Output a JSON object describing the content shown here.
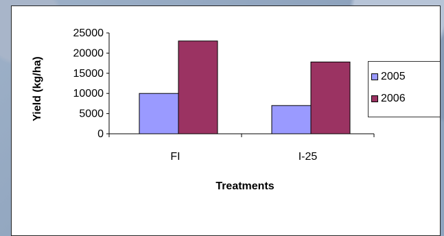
{
  "chart_data": {
    "type": "bar",
    "categories": [
      "FI",
      "I-25"
    ],
    "series": [
      {
        "name": "2005",
        "values": [
          10000,
          7000
        ],
        "color": "#9a9aff"
      },
      {
        "name": "2006",
        "values": [
          23000,
          17800
        ],
        "color": "#9b3362"
      }
    ],
    "ylabel": "Yield (kg/ha)",
    "xlabel": "Treatments",
    "ylim": [
      0,
      25000
    ],
    "yticks": [
      0,
      5000,
      10000,
      15000,
      20000,
      25000
    ],
    "legend_position": "right",
    "grid": false
  },
  "colors": {
    "background": "#8fa0b8",
    "card": "#ffffff"
  }
}
